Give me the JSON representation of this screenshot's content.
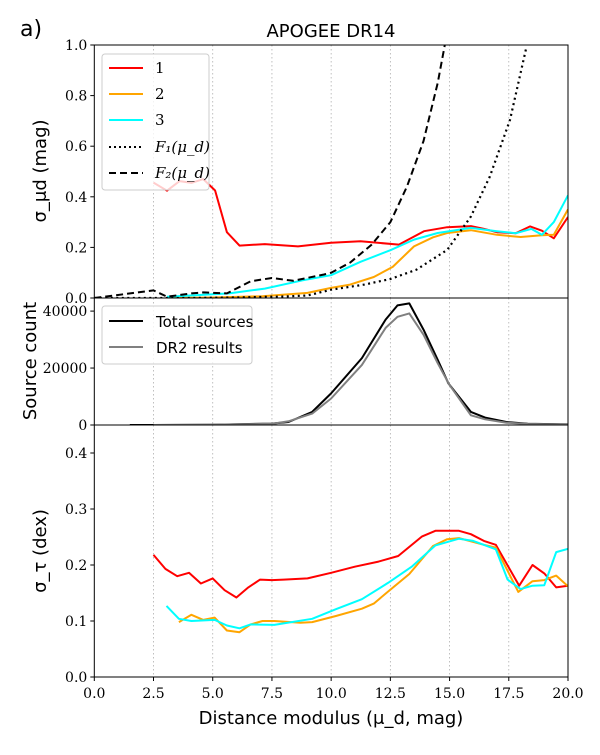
{
  "panel_label": "a)",
  "title": "APOGEE DR14",
  "xlabel": "Distance modulus (μ_d, mag)",
  "chart_data": [
    {
      "type": "line",
      "ylabel": "σ_μd (mag)",
      "xlim": [
        0,
        20
      ],
      "ylim": [
        0,
        1.0
      ],
      "xticks": [
        "0.0",
        "2.5",
        "5.0",
        "7.5",
        "10.0",
        "12.5",
        "15.0",
        "17.5",
        "20.0"
      ],
      "yticks": [
        "0.0",
        "0.2",
        "0.4",
        "0.6",
        "0.8",
        "1.0"
      ],
      "grid": "vertical dotted",
      "legend": "top-left",
      "series": [
        {
          "name": "1",
          "color": "#ff0000",
          "style": "solid",
          "x": [
            2.5,
            3.07,
            3.6,
            4.1,
            4.6,
            5.1,
            5.6,
            6.13,
            7.2,
            8.6,
            10.0,
            11.24,
            12.86,
            13.92,
            14.9,
            15.9,
            16.45,
            17.0,
            17.8,
            18.4,
            18.9,
            19.4,
            20.0
          ],
          "y": [
            0.456,
            0.424,
            0.462,
            0.455,
            0.47,
            0.425,
            0.26,
            0.207,
            0.213,
            0.204,
            0.218,
            0.224,
            0.211,
            0.264,
            0.28,
            0.284,
            0.273,
            0.26,
            0.256,
            0.283,
            0.266,
            0.236,
            0.32
          ]
        },
        {
          "name": "2",
          "color": "#ffa500",
          "style": "solid",
          "x": [
            3.07,
            5.0,
            7.1,
            9.0,
            10.0,
            10.8,
            11.8,
            12.6,
            13.5,
            14.3,
            14.9,
            15.9,
            17.0,
            18.0,
            18.9,
            19.4,
            20.0
          ],
          "y": [
            0.0,
            0.002,
            0.007,
            0.02,
            0.04,
            0.053,
            0.083,
            0.123,
            0.204,
            0.24,
            0.257,
            0.268,
            0.25,
            0.241,
            0.248,
            0.25,
            0.35
          ]
        },
        {
          "name": "3",
          "color": "#00ffff",
          "style": "solid",
          "x": [
            3.07,
            5.7,
            7.2,
            8.8,
            10.0,
            11.24,
            12.5,
            13.5,
            14.5,
            15.9,
            17.0,
            17.8,
            18.45,
            18.9,
            19.4,
            20.0
          ],
          "y": [
            0.005,
            0.018,
            0.037,
            0.07,
            0.09,
            0.143,
            0.189,
            0.231,
            0.257,
            0.277,
            0.264,
            0.256,
            0.273,
            0.25,
            0.3,
            0.406
          ]
        },
        {
          "name": "F₁(μ_d)",
          "color": "#000000",
          "style": "dotted",
          "x": [
            0,
            4,
            6,
            8,
            9,
            10,
            11.4,
            12.5,
            13.6,
            14.9,
            15.9,
            16.7,
            17.55,
            18.25
          ],
          "y": [
            0,
            0,
            0.002,
            0.006,
            0.01,
            0.033,
            0.053,
            0.075,
            0.112,
            0.19,
            0.322,
            0.48,
            0.704,
            0.995
          ]
        },
        {
          "name": "F₂(μ_d)",
          "color": "#000000",
          "style": "dashed",
          "x": [
            0,
            2.5,
            3.07,
            4.1,
            4.6,
            5.6,
            6.6,
            7.5,
            8.4,
            9.7,
            10.0,
            10.8,
            11.7,
            12.5,
            13.2,
            13.9,
            14.5,
            14.8
          ],
          "y": [
            0,
            0.03,
            0.005,
            0.018,
            0.022,
            0.018,
            0.066,
            0.079,
            0.068,
            0.093,
            0.1,
            0.14,
            0.21,
            0.3,
            0.44,
            0.62,
            0.85,
            1.0
          ]
        }
      ]
    },
    {
      "type": "line",
      "ylabel": "Source count",
      "xlim": [
        0,
        20
      ],
      "ylim": [
        0,
        44600
      ],
      "yticks": [
        "0",
        "20000",
        "40000"
      ],
      "legend": "top-left",
      "series": [
        {
          "name": "Total sources",
          "color": "#000000",
          "style": "solid",
          "x": [
            1.5,
            2.5,
            5,
            7.5,
            8.2,
            9.2,
            10.0,
            11.3,
            12.3,
            12.8,
            13.3,
            13.9,
            14.5,
            14.95,
            15.9,
            16.5,
            17.4,
            18.3,
            20.0
          ],
          "y": [
            0,
            0,
            100,
            500,
            1060,
            4600,
            11100,
            23500,
            37000,
            42000,
            42700,
            33500,
            22900,
            14600,
            4600,
            2600,
            1060,
            460,
            200
          ]
        },
        {
          "name": "DR2 results",
          "color": "#808080",
          "style": "solid",
          "x": [
            2.5,
            5,
            7.5,
            8.2,
            9.2,
            10.0,
            11.3,
            12.3,
            12.8,
            13.3,
            13.9,
            14.5,
            15.0,
            15.9,
            16.5,
            17.4,
            18.3,
            20.0
          ],
          "y": [
            0,
            80,
            400,
            1300,
            4000,
            9300,
            21100,
            34100,
            38000,
            39200,
            31700,
            21700,
            14000,
            3400,
            2000,
            800,
            350,
            150
          ]
        }
      ]
    },
    {
      "type": "line",
      "ylabel": "σ_τ (dex)",
      "xlim": [
        0,
        20
      ],
      "ylim": [
        0,
        0.45
      ],
      "yticks": [
        "0.0",
        "0.1",
        "0.2",
        "0.3",
        "0.4"
      ],
      "series": [
        {
          "name": "1",
          "color": "#ff0000",
          "style": "solid",
          "x": [
            2.5,
            3.0,
            3.5,
            4.0,
            4.5,
            5.0,
            5.5,
            6.0,
            6.5,
            7.0,
            7.5,
            8.0,
            9.0,
            10.0,
            11.0,
            12.0,
            12.83,
            13.84,
            14.4,
            15.4,
            15.9,
            16.45,
            16.95,
            17.94,
            18.5,
            19.0,
            19.5,
            20.0
          ],
          "y": [
            0.218,
            0.193,
            0.18,
            0.186,
            0.167,
            0.176,
            0.155,
            0.142,
            0.16,
            0.174,
            0.173,
            0.174,
            0.176,
            0.186,
            0.197,
            0.206,
            0.216,
            0.251,
            0.261,
            0.261,
            0.255,
            0.243,
            0.236,
            0.163,
            0.2,
            0.185,
            0.16,
            0.163
          ]
        },
        {
          "name": "2",
          "color": "#ffa500",
          "style": "solid",
          "x": [
            3.57,
            4.1,
            4.6,
            5.08,
            5.6,
            6.13,
            6.6,
            7.1,
            7.6,
            8.7,
            9.2,
            10.2,
            11.3,
            11.8,
            12.3,
            13.3,
            14.3,
            14.9,
            15.4,
            16.45,
            16.95,
            17.9,
            18.5,
            19.0,
            19.5,
            20.0
          ],
          "y": [
            0.098,
            0.111,
            0.102,
            0.106,
            0.083,
            0.08,
            0.094,
            0.1,
            0.1,
            0.097,
            0.098,
            0.109,
            0.122,
            0.131,
            0.149,
            0.184,
            0.234,
            0.246,
            0.248,
            0.236,
            0.231,
            0.152,
            0.171,
            0.173,
            0.181,
            0.162
          ]
        },
        {
          "name": "3",
          "color": "#00ffff",
          "style": "solid",
          "x": [
            3.05,
            3.57,
            4.1,
            5.08,
            5.6,
            6.13,
            6.6,
            7.6,
            9.2,
            10.2,
            11.3,
            12.4,
            13.4,
            14.4,
            15.4,
            16.0,
            16.95,
            17.45,
            18.0,
            18.5,
            19.0,
            19.5,
            20.0
          ],
          "y": [
            0.127,
            0.104,
            0.1,
            0.102,
            0.092,
            0.087,
            0.094,
            0.093,
            0.104,
            0.121,
            0.139,
            0.168,
            0.197,
            0.235,
            0.247,
            0.243,
            0.228,
            0.174,
            0.157,
            0.163,
            0.164,
            0.223,
            0.229
          ]
        }
      ]
    }
  ]
}
